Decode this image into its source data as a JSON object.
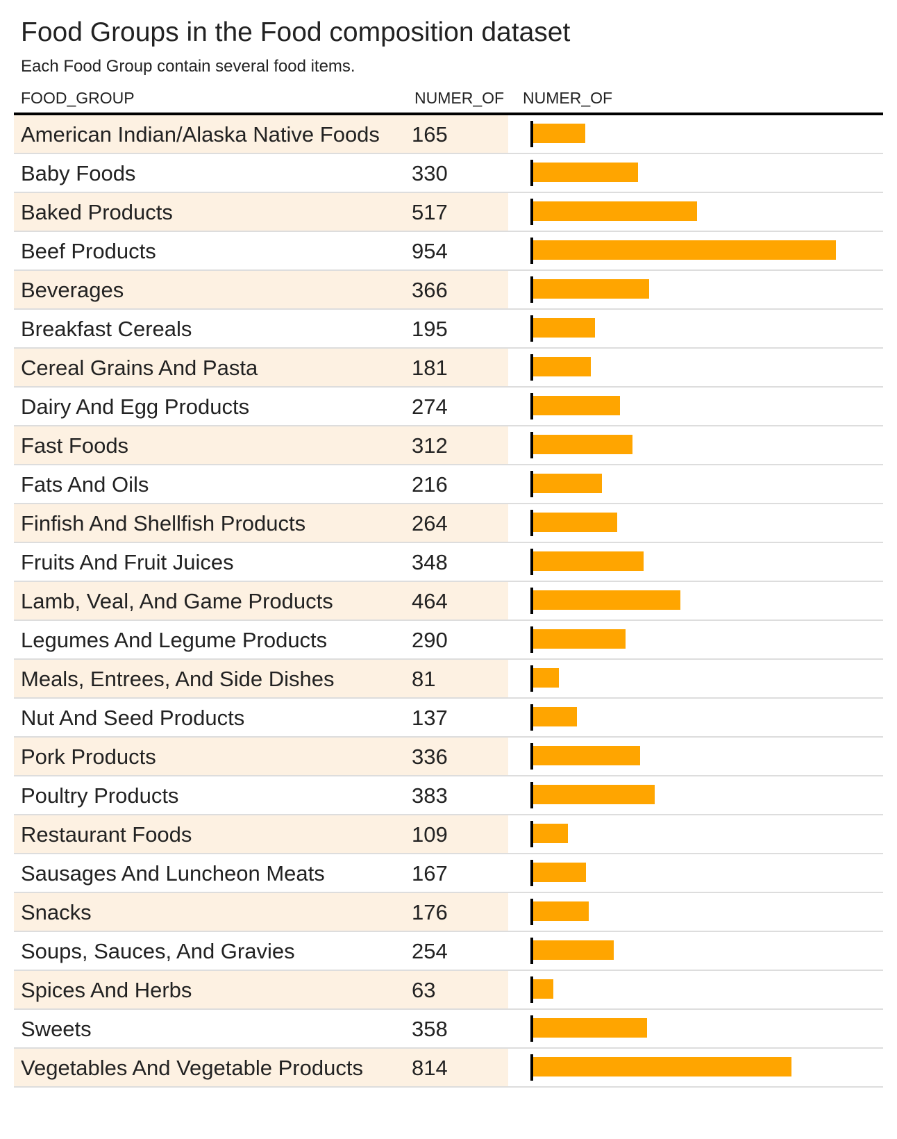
{
  "title": "Food Groups in the Food composition dataset",
  "subtitle": "Each Food Group contain several food items.",
  "headers": {
    "group": "FOOD_GROUP",
    "num": "NUMER_OF",
    "bar": "NUMER_OF"
  },
  "colors": {
    "bar": "#ffa500",
    "shade": "#fdf1e2",
    "rule": "#000000",
    "divider": "#dddddd"
  },
  "chart_data": {
    "type": "table",
    "bar_scale_max": 954,
    "columns": [
      "FOOD_GROUP",
      "NUMER_OF",
      "NUMER_OF"
    ],
    "categories": [
      "American Indian/Alaska Native Foods",
      "Baby Foods",
      "Baked Products",
      "Beef Products",
      "Beverages",
      "Breakfast Cereals",
      "Cereal Grains And Pasta",
      "Dairy And Egg Products",
      "Fast Foods",
      "Fats And Oils",
      "Finfish And Shellfish Products",
      "Fruits And Fruit Juices",
      "Lamb, Veal, And Game Products",
      "Legumes And Legume Products",
      "Meals, Entrees, And Side Dishes",
      "Nut And Seed Products",
      "Pork Products",
      "Poultry Products",
      "Restaurant Foods",
      "Sausages And Luncheon Meats",
      "Snacks",
      "Soups, Sauces, And Gravies",
      "Spices And Herbs",
      "Sweets",
      "Vegetables And Vegetable Products"
    ],
    "values": [
      165,
      330,
      517,
      954,
      366,
      195,
      181,
      274,
      312,
      216,
      264,
      348,
      464,
      290,
      81,
      137,
      336,
      383,
      109,
      167,
      176,
      254,
      63,
      358,
      814
    ]
  }
}
